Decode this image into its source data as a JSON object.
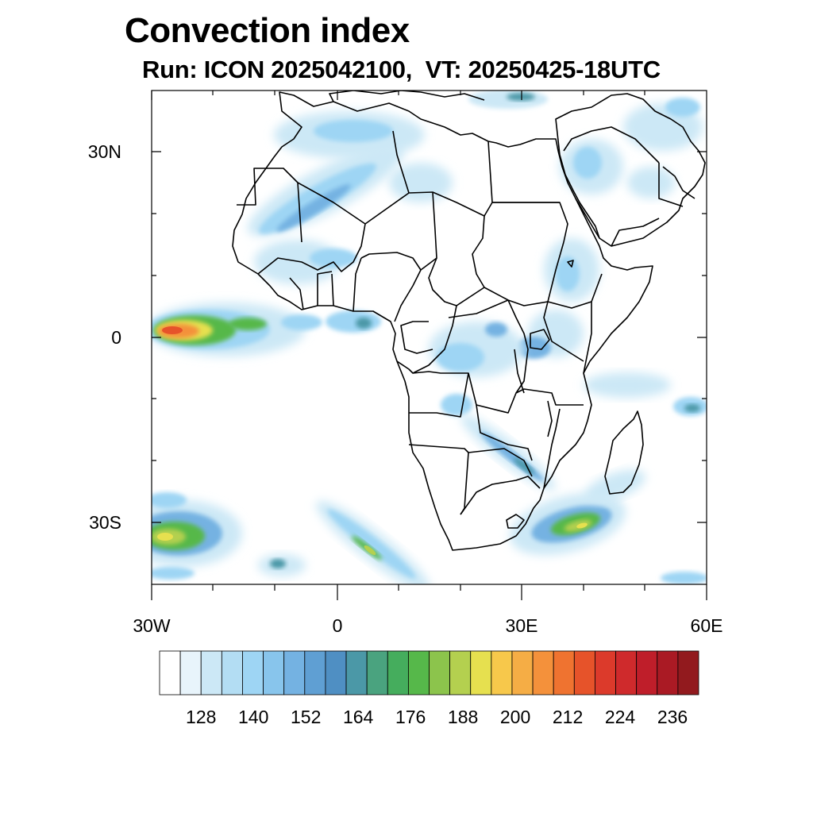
{
  "title": "Convection index",
  "subtitle": "Run: ICON 2025042100,  VT: 20250425-18UTC",
  "axes": {
    "lat_labels": [
      "30N",
      "0",
      "30S"
    ],
    "lon_labels": [
      "30W",
      "0",
      "30E",
      "60E"
    ]
  },
  "colorbar": {
    "labels": [
      "128",
      "140",
      "152",
      "164",
      "176",
      "188",
      "200",
      "212",
      "224",
      "236"
    ],
    "colors": [
      "#ffffff",
      "#e8f4fb",
      "#cce8f6",
      "#b3ddf3",
      "#9ed5f4",
      "#88c5ec",
      "#74b2e2",
      "#5f9fd3",
      "#4f8fc3",
      "#4b98a7",
      "#4aa37f",
      "#45ad5d",
      "#56b84a",
      "#8cc44c",
      "#b4d04f",
      "#e6e04f",
      "#f7c84b",
      "#f5ad45",
      "#f4913b",
      "#ef7330",
      "#e6532a",
      "#dc3a2b",
      "#cf2a2c",
      "#bf1e2a",
      "#aa1a24",
      "#921a1e"
    ]
  },
  "map": {
    "land_color": "#ffffff",
    "outline_color": "#000000",
    "colors": {
      "pale": "#cce8f6",
      "light": "#9ed5f4",
      "mid": "#74b2e2",
      "teal": "#4b98a7",
      "green": "#56b84a",
      "lime": "#b4d04f",
      "yellow": "#e6e04f",
      "orange": "#f4913b",
      "red": "#e6532a"
    }
  }
}
